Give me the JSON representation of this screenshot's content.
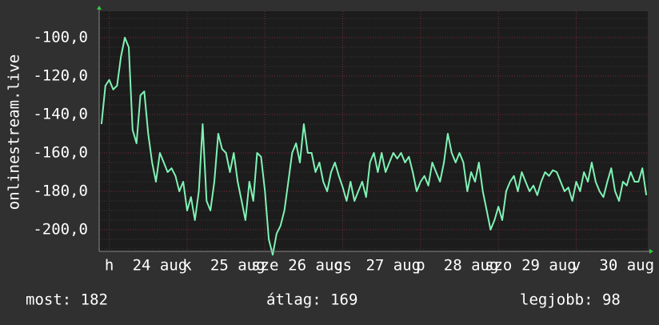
{
  "chart_data": {
    "type": "line",
    "y_label": "onlinestream.live",
    "stats": [
      "most: 182",
      "átlag: 169",
      "legjobb: 98"
    ],
    "xlim": [
      23.87,
      30.92
    ],
    "ylim": [
      -211.25,
      -86.25
    ],
    "grid": true,
    "yticks": [
      {
        "value": -100,
        "label": "-100,0"
      },
      {
        "value": -120,
        "label": "-120,0"
      },
      {
        "value": -140,
        "label": "-140,0"
      },
      {
        "value": -160,
        "label": "-160,0"
      },
      {
        "value": -180,
        "label": "-180,0"
      },
      {
        "value": -200,
        "label": "-200,0"
      }
    ],
    "xticks": [
      {
        "value": 24,
        "label": "h"
      },
      {
        "value": 24.65,
        "label": "24 aug"
      },
      {
        "value": 25,
        "label": "k"
      },
      {
        "value": 25.65,
        "label": "25 aug"
      },
      {
        "value": 26,
        "label": "sze"
      },
      {
        "value": 26.65,
        "label": "26 aug"
      },
      {
        "value": 27,
        "label": "cs"
      },
      {
        "value": 27.65,
        "label": "27 aug"
      },
      {
        "value": 28,
        "label": "p"
      },
      {
        "value": 28.65,
        "label": "28 aug"
      },
      {
        "value": 29,
        "label": "szo"
      },
      {
        "value": 29.65,
        "label": "29 aug"
      },
      {
        "value": 30,
        "label": "v"
      },
      {
        "value": 30.65,
        "label": "30 aug"
      }
    ],
    "x": [
      23.9,
      23.95,
      24,
      24.05,
      24.1,
      24.15,
      24.2,
      24.25,
      24.3,
      24.35,
      24.4,
      24.45,
      24.5,
      24.55,
      24.6,
      24.65,
      24.7,
      24.75,
      24.8,
      24.85,
      24.9,
      24.95,
      25,
      25.05,
      25.1,
      25.15,
      25.2,
      25.25,
      25.3,
      25.35,
      25.4,
      25.45,
      25.5,
      25.55,
      25.6,
      25.65,
      25.7,
      25.75,
      25.8,
      25.85,
      25.9,
      25.95,
      26,
      26.05,
      26.1,
      26.15,
      26.2,
      26.25,
      26.3,
      26.35,
      26.4,
      26.45,
      26.5,
      26.55,
      26.6,
      26.65,
      26.7,
      26.75,
      26.8,
      26.85,
      26.9,
      26.95,
      27,
      27.05,
      27.1,
      27.15,
      27.2,
      27.25,
      27.3,
      27.35,
      27.4,
      27.45,
      27.5,
      27.55,
      27.6,
      27.65,
      27.7,
      27.75,
      27.8,
      27.85,
      27.9,
      27.95,
      28,
      28.05,
      28.1,
      28.15,
      28.2,
      28.25,
      28.3,
      28.35,
      28.4,
      28.45,
      28.5,
      28.55,
      28.6,
      28.65,
      28.7,
      28.75,
      28.8,
      28.85,
      28.9,
      28.95,
      29,
      29.05,
      29.1,
      29.15,
      29.2,
      29.25,
      29.3,
      29.35,
      29.4,
      29.45,
      29.5,
      29.55,
      29.6,
      29.65,
      29.7,
      29.75,
      29.8,
      29.85,
      29.9,
      29.95,
      30,
      30.05,
      30.1,
      30.15,
      30.2,
      30.25,
      30.3,
      30.35,
      30.4,
      30.45,
      30.5,
      30.55,
      30.6,
      30.65,
      30.7,
      30.75,
      30.8,
      30.85,
      30.9
    ],
    "series": [
      {
        "color": "#7ff2b4",
        "values": [
          -145,
          -125,
          -122,
          -127,
          -125,
          -110,
          -100,
          -105,
          -148,
          -155,
          -130,
          -128,
          -150,
          -165,
          -175,
          -160,
          -165,
          -170,
          -168,
          -172,
          -180,
          -175,
          -190,
          -183,
          -195,
          -180,
          -145,
          -185,
          -190,
          -175,
          -150,
          -158,
          -160,
          -170,
          -160,
          -175,
          -185,
          -195,
          -175,
          -185,
          -160,
          -162,
          -180,
          -205,
          -213,
          -202,
          -198,
          -190,
          -175,
          -160,
          -155,
          -165,
          -145,
          -160,
          -160,
          -170,
          -165,
          -175,
          -180,
          -170,
          -165,
          -172,
          -178,
          -185,
          -175,
          -185,
          -180,
          -175,
          -183,
          -165,
          -160,
          -170,
          -160,
          -170,
          -165,
          -160,
          -163,
          -160,
          -165,
          -162,
          -170,
          -180,
          -175,
          -172,
          -177,
          -165,
          -170,
          -175,
          -165,
          -150,
          -160,
          -165,
          -160,
          -165,
          -180,
          -170,
          -175,
          -165,
          -180,
          -190,
          -200,
          -195,
          -188,
          -195,
          -180,
          -175,
          -172,
          -180,
          -170,
          -175,
          -180,
          -177,
          -182,
          -175,
          -170,
          -172,
          -169,
          -170,
          -175,
          -180,
          -178,
          -185,
          -175,
          -180,
          -170,
          -175,
          -165,
          -175,
          -180,
          -183,
          -175,
          -168,
          -180,
          -185,
          -175,
          -177,
          -170,
          -175,
          -175,
          -168,
          -182
        ]
      }
    ]
  }
}
